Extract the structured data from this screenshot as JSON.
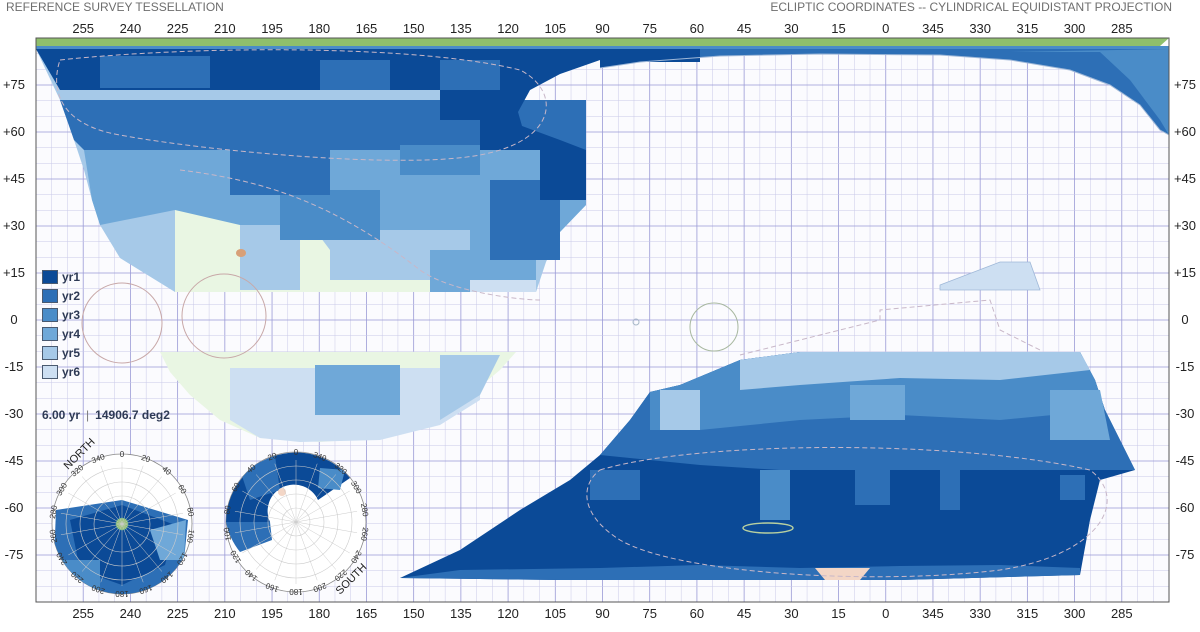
{
  "header": {
    "left_title": "REFERENCE SURVEY TESSELLATION",
    "right_title": "ECLIPTIC COORDINATES -- CYLINDRICAL EQUIDISTANT PROJECTION"
  },
  "axes": {
    "lon_labels": [
      "255",
      "240",
      "225",
      "210",
      "195",
      "180",
      "165",
      "150",
      "135",
      "120",
      "105",
      "90",
      "75",
      "60",
      "45",
      "30",
      "15",
      "0",
      "345",
      "330",
      "315",
      "300",
      "285"
    ],
    "lat_labels": [
      "+75",
      "+60",
      "+45",
      "+30",
      "+15",
      "0",
      "-15",
      "-30",
      "-45",
      "-60",
      "-75"
    ]
  },
  "legend": {
    "items": [
      {
        "label": "yr1",
        "color": "#0b4a97"
      },
      {
        "label": "yr2",
        "color": "#2d6fb6"
      },
      {
        "label": "yr3",
        "color": "#4a8cc8"
      },
      {
        "label": "yr4",
        "color": "#6fa8d8"
      },
      {
        "label": "yr5",
        "color": "#a6c9e8"
      },
      {
        "label": "yr6",
        "color": "#cddff2"
      }
    ]
  },
  "summary": {
    "duration": "6.00 yr",
    "area": "14906.7 deg2"
  },
  "north_pole": {
    "label": "NORTH",
    "ticks": [
      "0",
      "20",
      "40",
      "60",
      "80",
      "100",
      "120",
      "140",
      "160",
      "180",
      "200",
      "220",
      "240",
      "260",
      "280",
      "300",
      "320",
      "340"
    ]
  },
  "south_pole": {
    "label": "SOUTH",
    "ticks": [
      "0",
      "20",
      "40",
      "60",
      "80",
      "100",
      "120",
      "140",
      "160",
      "180",
      "200",
      "220",
      "240",
      "260",
      "280",
      "300",
      "320",
      "340"
    ]
  },
  "colors": {
    "grid": "#c9c9e8",
    "grid_strong": "#9a9ad6",
    "galactic_plane": "#8fbf6c",
    "region_fill_light": "#e9f6e3"
  }
}
